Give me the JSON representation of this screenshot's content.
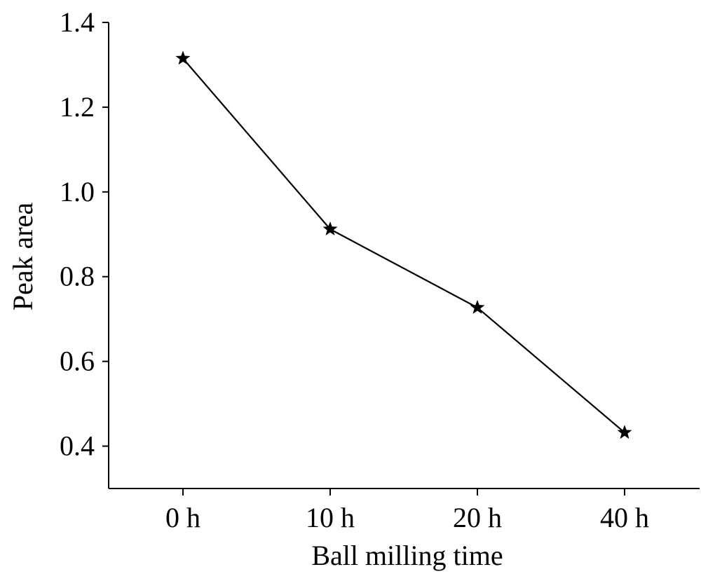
{
  "chart_data": {
    "type": "line",
    "title": "",
    "xlabel": "Ball milling time",
    "ylabel": "Peak area",
    "categories": [
      "0 h",
      "10 h",
      "20 h",
      "40 h"
    ],
    "series": [
      {
        "values": [
          1.315,
          0.912,
          0.727,
          0.432
        ]
      }
    ],
    "ylim": [
      0.3,
      1.4
    ],
    "yticks": [
      0.4,
      0.6,
      0.8,
      1.0,
      1.2,
      1.4
    ],
    "ytick_labels": [
      "0.4",
      "0.6",
      "0.8",
      "1.0",
      "1.2",
      "1.4"
    ],
    "marker": "star",
    "grid": false,
    "legend": "none",
    "colors": {
      "line": "#000000",
      "marker": "#000000",
      "axes": "#000000"
    }
  }
}
